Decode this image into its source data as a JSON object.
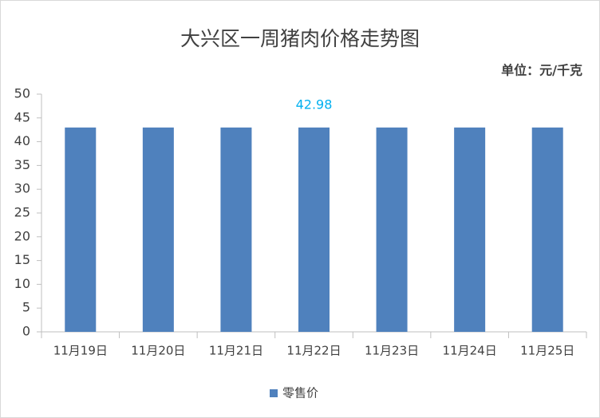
{
  "chart_data": {
    "type": "bar",
    "title": "大兴区一周猪肉价格走势图",
    "unit": "单位：元/千克",
    "categories": [
      "11月19日",
      "11月20日",
      "11月21日",
      "11月22日",
      "11月23日",
      "11月24日",
      "11月25日"
    ],
    "series": [
      {
        "name": "零售价",
        "color": "#4f81bd",
        "values": [
          42.98,
          42.98,
          42.98,
          42.98,
          42.98,
          42.98,
          42.98
        ],
        "value_labels": [
          null,
          null,
          null,
          "42.98",
          null,
          null,
          null
        ]
      }
    ],
    "ylim": [
      0,
      50
    ],
    "yticks": [
      0,
      5,
      10,
      15,
      20,
      25,
      30,
      35,
      40,
      45,
      50
    ],
    "grid": false,
    "legend": "bottom"
  }
}
